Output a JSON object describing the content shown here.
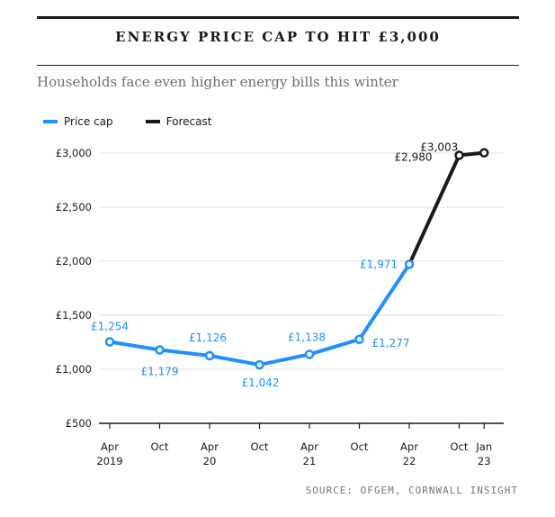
{
  "title": "ENERGY PRICE CAP TO HIT £3,000",
  "subtitle": "Households face even higher energy bills this winter",
  "source": "SOURCE: OFGEM, CORNWALL INSIGHT",
  "colors": {
    "price_cap": "#1e90ff",
    "forecast": "#1a1a1a"
  },
  "chart_data": {
    "type": "line",
    "ylim": [
      500,
      3000
    ],
    "y_ticks": [
      {
        "value": 500,
        "label": "£500"
      },
      {
        "value": 1000,
        "label": "£1,000"
      },
      {
        "value": 1500,
        "label": "£1,500"
      },
      {
        "value": 2000,
        "label": "£2,000"
      },
      {
        "value": 2500,
        "label": "£2,500"
      },
      {
        "value": 3000,
        "label": "£3,000"
      }
    ],
    "x_ticks": [
      {
        "date": "2019-04",
        "line1": "Apr",
        "line2": "2019"
      },
      {
        "date": "2019-10",
        "line1": "Oct",
        "line2": ""
      },
      {
        "date": "2020-04",
        "line1": "Apr",
        "line2": "20"
      },
      {
        "date": "2020-10",
        "line1": "Oct",
        "line2": ""
      },
      {
        "date": "2021-04",
        "line1": "Apr",
        "line2": "21"
      },
      {
        "date": "2021-10",
        "line1": "Oct",
        "line2": ""
      },
      {
        "date": "2022-04",
        "line1": "Apr",
        "line2": "22"
      },
      {
        "date": "2022-10",
        "line1": "Oct",
        "line2": ""
      },
      {
        "date": "2023-01",
        "line1": "Jan",
        "line2": "23"
      }
    ],
    "grid": true,
    "legend_position": "top-left",
    "series": [
      {
        "name": "Price cap",
        "points": [
          {
            "x": "2019-04",
            "y": 1254,
            "label": "£1,254"
          },
          {
            "x": "2019-10",
            "y": 1179,
            "label": "£1,179"
          },
          {
            "x": "2020-04",
            "y": 1126,
            "label": "£1,126"
          },
          {
            "x": "2020-10",
            "y": 1042,
            "label": "£1,042"
          },
          {
            "x": "2021-04",
            "y": 1138,
            "label": "£1,138"
          },
          {
            "x": "2021-10",
            "y": 1277,
            "label": "£1,277"
          },
          {
            "x": "2022-04",
            "y": 1971,
            "label": "£1,971"
          }
        ]
      },
      {
        "name": "Forecast",
        "points": [
          {
            "x": "2022-04",
            "y": 1971,
            "label": ""
          },
          {
            "x": "2022-10",
            "y": 2980,
            "label": "£2,980"
          },
          {
            "x": "2023-01",
            "y": 3003,
            "label": "£3,003"
          }
        ]
      }
    ]
  }
}
